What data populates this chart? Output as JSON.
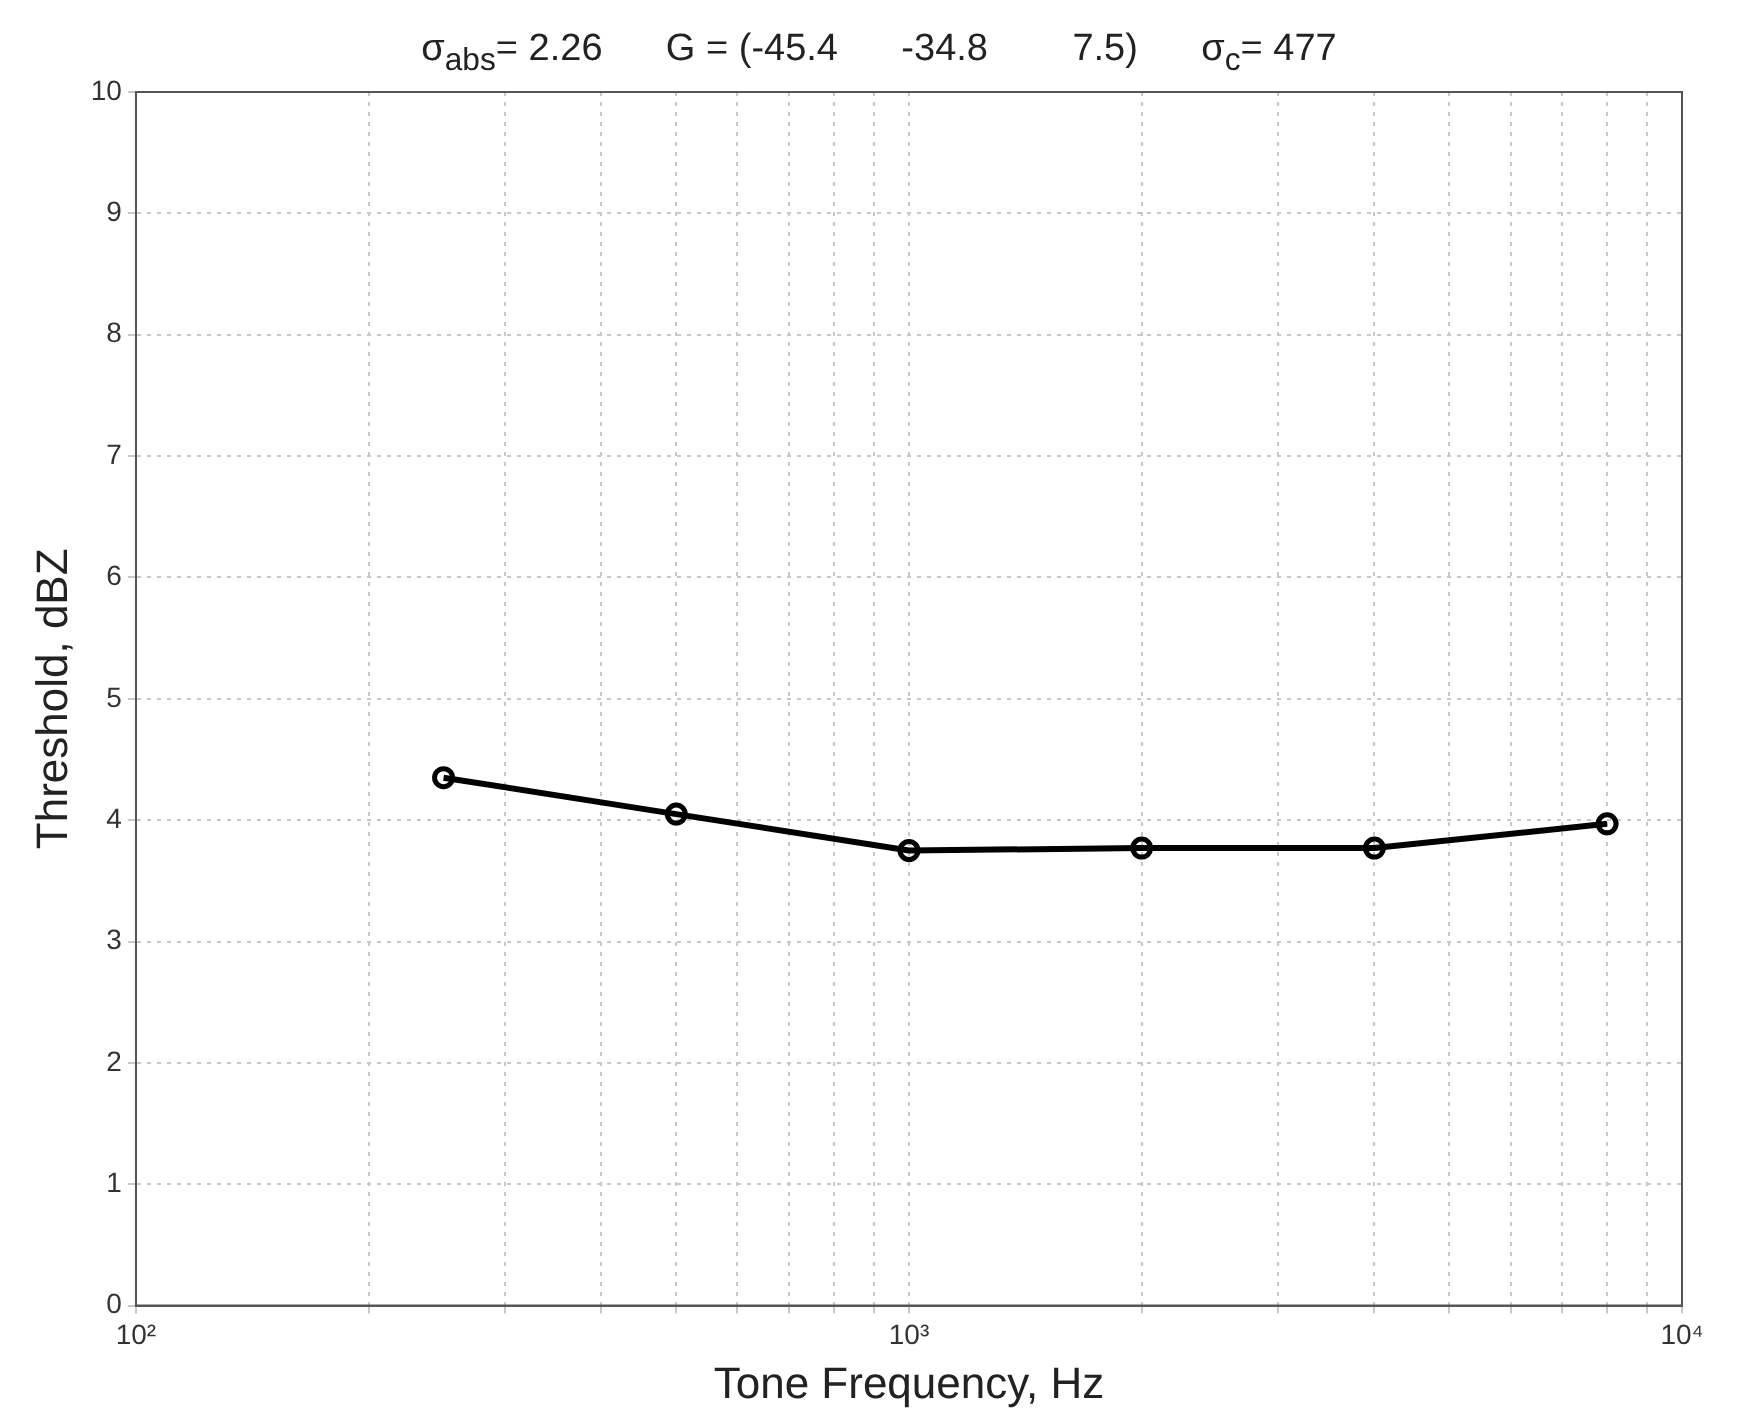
{
  "chart_data": {
    "type": "line",
    "title": "σ$_{abs}$= 2.26      G = (-45.4      -34.8        7.5)      σ$_{c}$= 477",
    "xlabel": "Tone Frequency, Hz",
    "ylabel": "Threshold, dBZ",
    "x": [
      250,
      500,
      1000,
      2000,
      4000,
      8000
    ],
    "series": [
      {
        "color": "#000000",
        "values": [
          4.35,
          4.05,
          3.75,
          3.77,
          3.77,
          3.97
        ]
      }
    ],
    "log": "x",
    "xlim": [
      100,
      10000
    ],
    "xticks": [
      {
        "value": 100,
        "label": "10²"
      },
      {
        "value": 200,
        "label": null
      },
      {
        "value": 300,
        "label": null
      },
      {
        "value": 400,
        "label": null
      },
      {
        "value": 500,
        "label": null
      },
      {
        "value": 600,
        "label": null
      },
      {
        "value": 700,
        "label": null
      },
      {
        "value": 800,
        "label": null
      },
      {
        "value": 900,
        "label": null
      },
      {
        "value": 1000,
        "label": "10³"
      },
      {
        "value": 2000,
        "label": null
      },
      {
        "value": 3000,
        "label": null
      },
      {
        "value": 4000,
        "label": null
      },
      {
        "value": 5000,
        "label": null
      },
      {
        "value": 6000,
        "label": null
      },
      {
        "value": 7000,
        "label": null
      },
      {
        "value": 8000,
        "label": null
      },
      {
        "value": 9000,
        "label": null
      },
      {
        "value": 10000,
        "label": "10⁴"
      }
    ],
    "ylim": [
      0,
      10
    ],
    "yticks": [
      0,
      1,
      2,
      3,
      4,
      5,
      6,
      7,
      8,
      9,
      10
    ],
    "grid": true,
    "marker": "circle",
    "line_style": "solid"
  }
}
